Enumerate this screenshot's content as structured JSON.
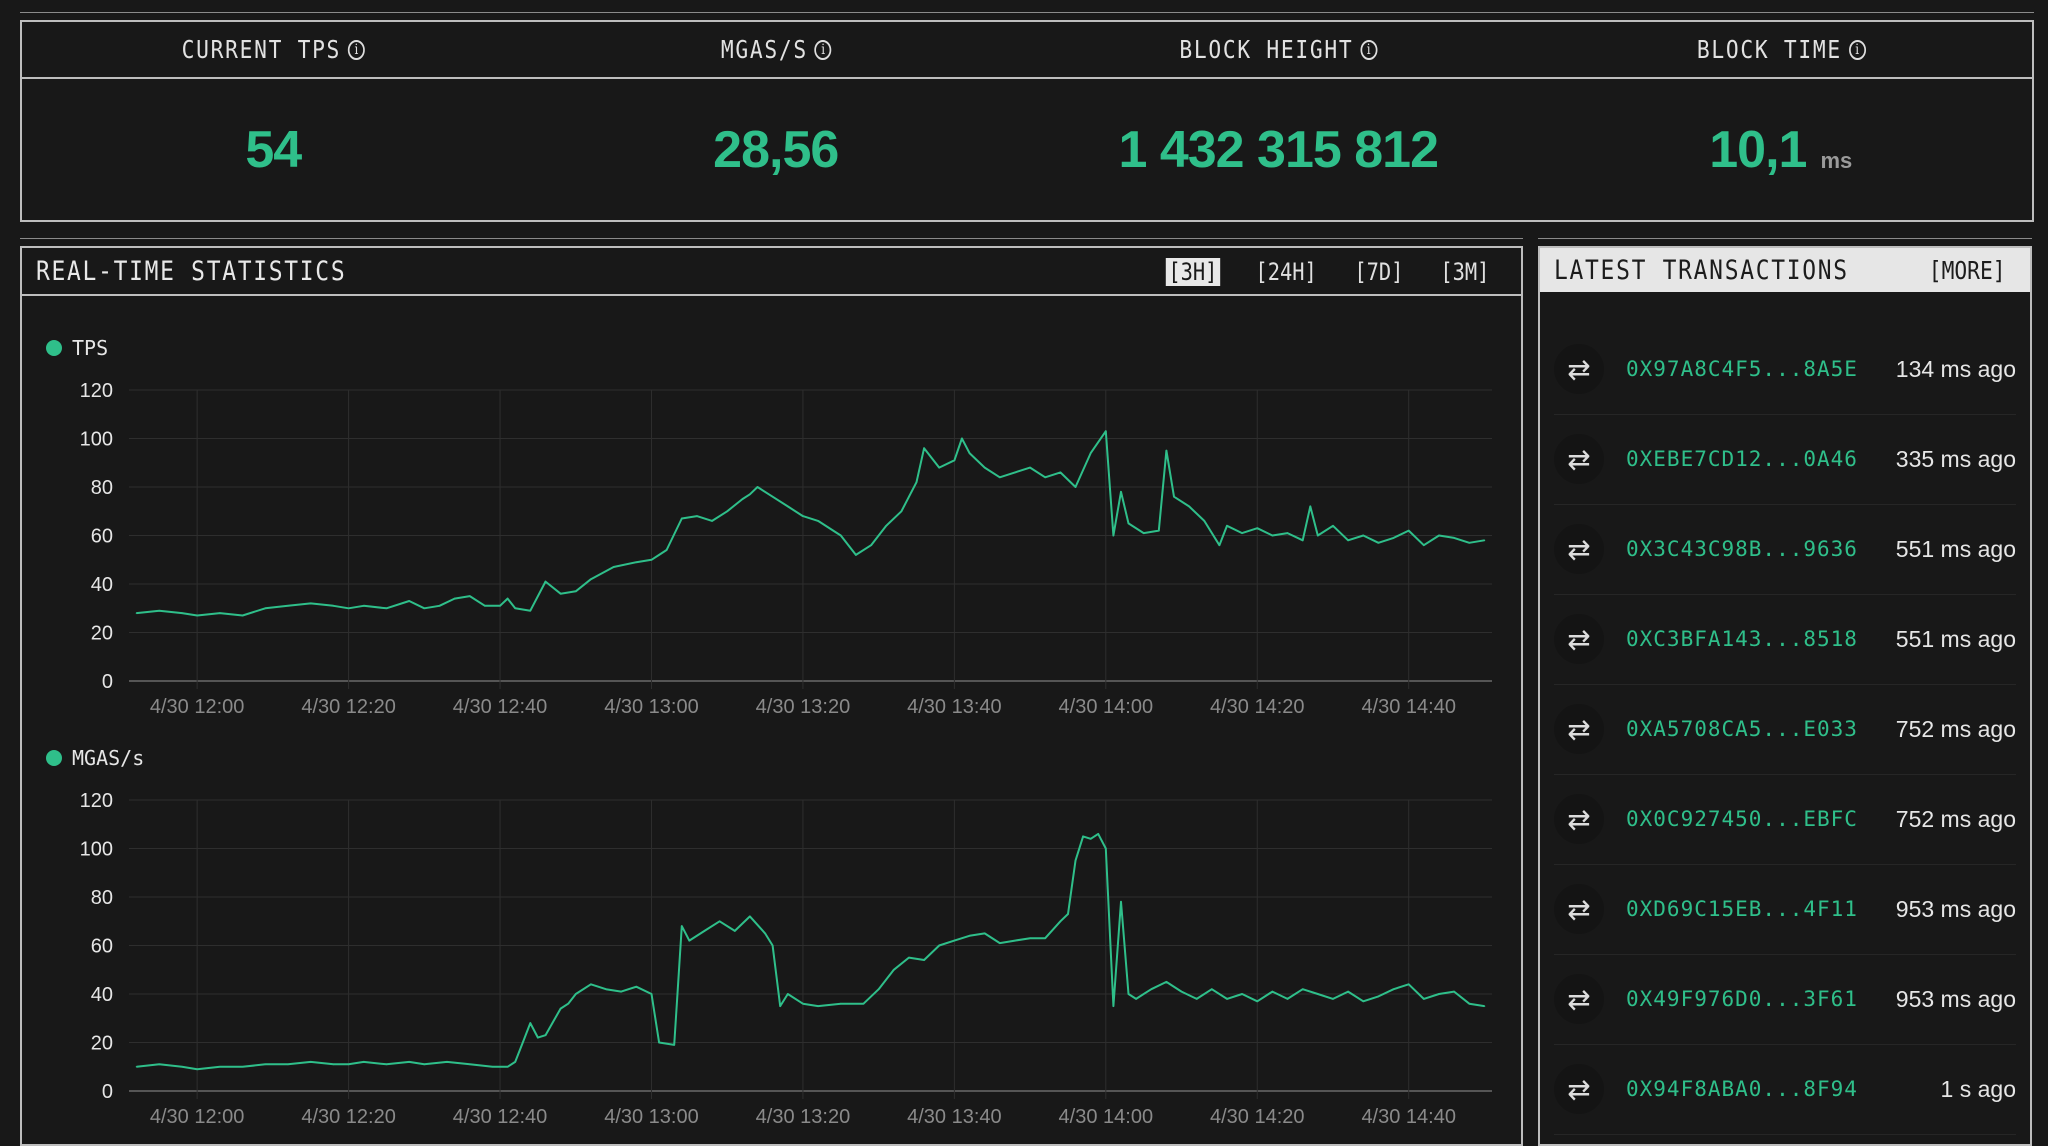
{
  "metrics": [
    {
      "label": "CURRENT TPS",
      "value": "54",
      "unit": ""
    },
    {
      "label": "MGAS/S",
      "value": "28,56",
      "unit": ""
    },
    {
      "label": "BLOCK HEIGHT",
      "value": "1 432 315 812",
      "unit": ""
    },
    {
      "label": "BLOCK TIME",
      "value": "10,1",
      "unit": "ms"
    }
  ],
  "stats": {
    "title": "REAL-TIME STATISTICS",
    "ranges": [
      "[3H]",
      "[24H]",
      "[7D]",
      "[3M]"
    ],
    "active_range": "[3H]"
  },
  "colors": {
    "accent": "#2fbf8a",
    "background": "#181818",
    "grid": "#333333"
  },
  "chart_data": [
    {
      "type": "line",
      "legend": "TPS",
      "ylim": [
        0,
        120
      ],
      "yticks": [
        0,
        20,
        40,
        60,
        80,
        100,
        120
      ],
      "xticks": [
        "4/30 12:00",
        "4/30 12:20",
        "4/30 12:40",
        "4/30 13:00",
        "4/30 13:20",
        "4/30 13:40",
        "4/30 14:00",
        "4/30 14:20",
        "4/30 14:40"
      ],
      "xrange": [
        "11:51",
        "14:51"
      ],
      "grid": true,
      "x": [
        "11:52",
        "11:55",
        "11:58",
        "12:00",
        "12:03",
        "12:06",
        "12:09",
        "12:12",
        "12:15",
        "12:18",
        "12:20",
        "12:22",
        "12:25",
        "12:28",
        "12:30",
        "12:32",
        "12:34",
        "12:36",
        "12:38",
        "12:40",
        "12:41",
        "12:42",
        "12:44",
        "12:46",
        "12:48",
        "12:50",
        "12:52",
        "12:55",
        "12:58",
        "13:00",
        "13:01",
        "13:02",
        "13:04",
        "13:06",
        "13:08",
        "13:10",
        "13:12",
        "13:13",
        "13:14",
        "13:16",
        "13:18",
        "13:20",
        "13:22",
        "13:24",
        "13:25",
        "13:27",
        "13:29",
        "13:31",
        "13:33",
        "13:35",
        "13:36",
        "13:38",
        "13:40",
        "13:41",
        "13:42",
        "13:44",
        "13:46",
        "13:48",
        "13:50",
        "13:52",
        "13:54",
        "13:56",
        "13:58",
        "14:00",
        "14:01",
        "14:02",
        "14:03",
        "14:05",
        "14:07",
        "14:08",
        "14:09",
        "14:11",
        "14:13",
        "14:15",
        "14:16",
        "14:18",
        "14:20",
        "14:22",
        "14:24",
        "14:26",
        "14:27",
        "14:28",
        "14:30",
        "14:32",
        "14:34",
        "14:36",
        "14:38",
        "14:40",
        "14:42",
        "14:44",
        "14:46",
        "14:48",
        "14:50"
      ],
      "values": [
        28,
        29,
        28,
        27,
        28,
        27,
        30,
        31,
        32,
        31,
        30,
        31,
        30,
        33,
        30,
        31,
        34,
        35,
        31,
        31,
        34,
        30,
        29,
        41,
        36,
        37,
        42,
        47,
        49,
        50,
        52,
        54,
        67,
        68,
        66,
        70,
        75,
        77,
        80,
        76,
        72,
        68,
        66,
        62,
        60,
        52,
        56,
        64,
        70,
        82,
        96,
        88,
        91,
        100,
        94,
        88,
        84,
        86,
        88,
        84,
        86,
        80,
        94,
        103,
        60,
        78,
        65,
        61,
        62,
        95,
        76,
        72,
        66,
        56,
        64,
        61,
        63,
        60,
        61,
        58,
        72,
        60,
        64,
        58,
        60,
        57,
        59,
        62,
        56,
        60,
        59,
        57,
        58
      ]
    },
    {
      "type": "line",
      "legend": "MGAS/s",
      "ylim": [
        0,
        120
      ],
      "yticks": [
        0,
        20,
        40,
        60,
        80,
        100,
        120
      ],
      "xticks": [
        "4/30 12:00",
        "4/30 12:20",
        "4/30 12:40",
        "4/30 13:00",
        "4/30 13:20",
        "4/30 13:40",
        "4/30 14:00",
        "4/30 14:20",
        "4/30 14:40"
      ],
      "xrange": [
        "11:51",
        "14:51"
      ],
      "grid": true,
      "x": [
        "11:52",
        "11:55",
        "11:58",
        "12:00",
        "12:03",
        "12:06",
        "12:09",
        "12:12",
        "12:15",
        "12:18",
        "12:20",
        "12:22",
        "12:25",
        "12:28",
        "12:30",
        "12:33",
        "12:36",
        "12:39",
        "12:41",
        "12:42",
        "12:43",
        "12:44",
        "12:45",
        "12:46",
        "12:48",
        "12:49",
        "12:50",
        "12:52",
        "12:54",
        "12:56",
        "12:58",
        "13:00",
        "13:01",
        "13:03",
        "13:04",
        "13:05",
        "13:07",
        "13:09",
        "13:11",
        "13:13",
        "13:15",
        "13:16",
        "13:17",
        "13:18",
        "13:20",
        "13:22",
        "13:25",
        "13:28",
        "13:30",
        "13:32",
        "13:34",
        "13:36",
        "13:38",
        "13:40",
        "13:42",
        "13:44",
        "13:46",
        "13:48",
        "13:50",
        "13:52",
        "13:54",
        "13:55",
        "13:56",
        "13:57",
        "13:58",
        "13:59",
        "14:00",
        "14:01",
        "14:02",
        "14:03",
        "14:04",
        "14:06",
        "14:08",
        "14:10",
        "14:12",
        "14:14",
        "14:16",
        "14:18",
        "14:20",
        "14:22",
        "14:24",
        "14:26",
        "14:28",
        "14:30",
        "14:32",
        "14:34",
        "14:36",
        "14:38",
        "14:40",
        "14:42",
        "14:44",
        "14:46",
        "14:48",
        "14:50"
      ],
      "values": [
        10,
        11,
        10,
        9,
        10,
        10,
        11,
        11,
        12,
        11,
        11,
        12,
        11,
        12,
        11,
        12,
        11,
        10,
        10,
        12,
        20,
        28,
        22,
        23,
        34,
        36,
        40,
        44,
        42,
        41,
        43,
        40,
        20,
        19,
        68,
        62,
        66,
        70,
        66,
        72,
        65,
        60,
        35,
        40,
        36,
        35,
        36,
        36,
        42,
        50,
        55,
        54,
        60,
        62,
        64,
        65,
        61,
        62,
        63,
        63,
        70,
        73,
        95,
        105,
        104,
        106,
        100,
        35,
        78,
        40,
        38,
        42,
        45,
        41,
        38,
        42,
        38,
        40,
        37,
        41,
        38,
        42,
        40,
        38,
        41,
        37,
        39,
        42,
        44,
        38,
        40,
        41,
        36,
        35
      ]
    }
  ],
  "transactions": {
    "title": "LATEST TRANSACTIONS",
    "more_label": "[MORE]",
    "icon": "swap-arrows-icon",
    "items": [
      {
        "hash": "0X97A8C4F5...8A5E",
        "time": "134 ms ago"
      },
      {
        "hash": "0XEBE7CD12...0A46",
        "time": "335 ms ago"
      },
      {
        "hash": "0X3C43C98B...9636",
        "time": "551 ms ago"
      },
      {
        "hash": "0XC3BFA143...8518",
        "time": "551 ms ago"
      },
      {
        "hash": "0XA5708CA5...E033",
        "time": "752 ms ago"
      },
      {
        "hash": "0X0C927450...EBFC",
        "time": "752 ms ago"
      },
      {
        "hash": "0XD69C15EB...4F11",
        "time": "953 ms ago"
      },
      {
        "hash": "0X49F976D0...3F61",
        "time": "953 ms ago"
      },
      {
        "hash": "0X94F8ABA0...8F94",
        "time": "1 s ago"
      }
    ]
  }
}
